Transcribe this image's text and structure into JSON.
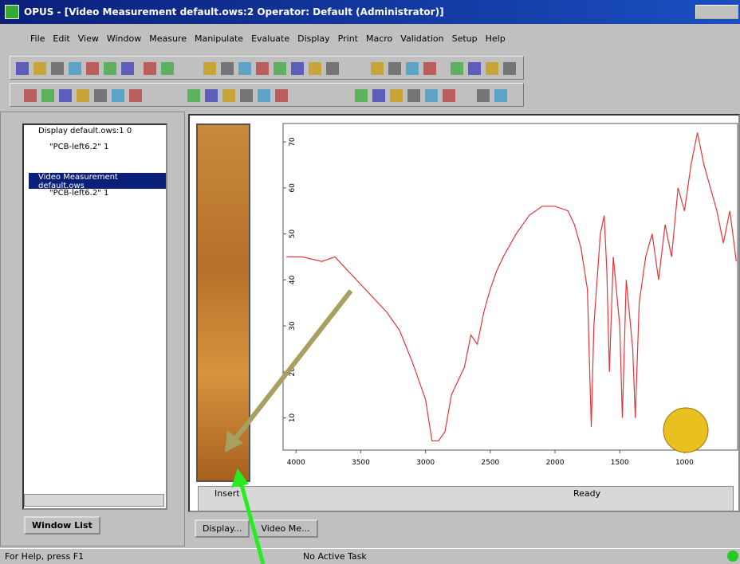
{
  "window": {
    "title": "OPUS - [Video Measurement default.ows:2    Operator: Default  (Administrator)]",
    "menu": [
      "File",
      "Edit",
      "View",
      "Window",
      "Measure",
      "Manipulate",
      "Evaluate",
      "Display",
      "Print",
      "Macro",
      "Validation",
      "Setup",
      "Help"
    ]
  },
  "tree": {
    "items": [
      "Display default.ows:1  0",
      "\"PCB-left6.2\" 1",
      "Video Measurement default.ows",
      "\"PCB-left6.2\" 1"
    ],
    "tab": "Window List"
  },
  "document_tabs": [
    "Display...",
    "Video Me..."
  ],
  "pane_status": {
    "left": "Insert",
    "right": "Ready"
  },
  "status_bar": {
    "help": "For Help, press F1",
    "task": "No Active Task"
  },
  "chart_data": {
    "type": "line",
    "x": [
      4074,
      3950,
      3800,
      3700,
      3600,
      3500,
      3300,
      3200,
      3100,
      3000,
      2950,
      2900,
      2850,
      2800,
      2700,
      2650,
      2600,
      2550,
      2500,
      2450,
      2400,
      2300,
      2200,
      2100,
      2000,
      1900,
      1850,
      1800,
      1750,
      1720,
      1700,
      1650,
      1620,
      1600,
      1580,
      1550,
      1500,
      1480,
      1450,
      1400,
      1380,
      1350,
      1300,
      1250,
      1200,
      1150,
      1100,
      1050,
      1000,
      950,
      900,
      850,
      800,
      750,
      700,
      650,
      600
    ],
    "values": [
      45,
      45,
      44,
      45,
      42,
      39,
      33,
      29,
      22,
      14,
      5,
      5,
      7,
      15,
      21,
      28,
      26,
      33,
      38,
      42,
      45,
      50,
      54,
      56,
      56,
      55,
      52,
      47,
      38,
      8,
      30,
      50,
      54,
      42,
      20,
      45,
      30,
      10,
      40,
      25,
      10,
      35,
      45,
      50,
      40,
      52,
      45,
      60,
      55,
      65,
      72,
      65,
      60,
      55,
      48,
      55,
      44
    ],
    "color": "#e8333a",
    "xlim": [
      4100,
      590
    ],
    "xticks": [
      4000,
      3500,
      3000,
      2500,
      2000,
      1500,
      1000
    ],
    "ylim": [
      3,
      74
    ],
    "yticks": [
      10,
      20,
      30,
      40,
      50,
      60,
      70
    ]
  }
}
